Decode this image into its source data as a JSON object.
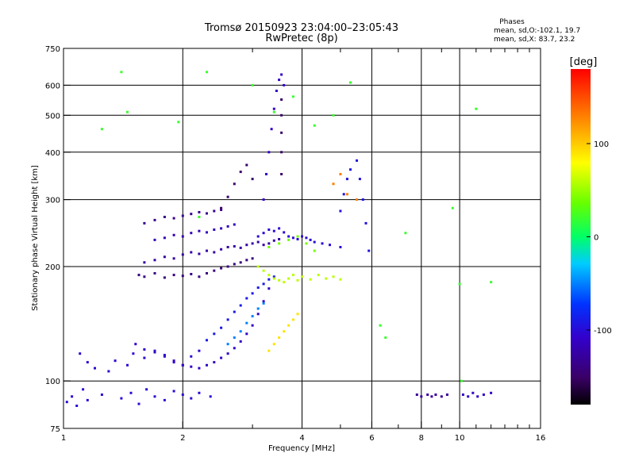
{
  "chart_data": {
    "type": "scatter",
    "title": "Tromsø 20150923 23:04:00–23:05:43",
    "subtitle": "RwPretec (8p)",
    "stats": {
      "heading": "Phases",
      "line_o": "mean, sd,O:-102.1, 19.7",
      "line_x": "mean, sd,X:  83.7, 23.2"
    },
    "xlabel": "Frequency [MHz]",
    "ylabel": "Stationary phase Virtual Height [km]",
    "x_scale": "log",
    "y_scale": "log",
    "xlim": [
      1,
      16
    ],
    "ylim": [
      75,
      750
    ],
    "x_ticks": [
      {
        "value": 1,
        "label": "1"
      },
      {
        "value": 2,
        "label": "2"
      },
      {
        "value": 4,
        "label": "4"
      },
      {
        "value": 6,
        "label": "6"
      },
      {
        "value": 8,
        "label": "8"
      },
      {
        "value": 10,
        "label": "10"
      },
      {
        "value": 16,
        "label": "16"
      }
    ],
    "x_gridlines": [
      2,
      4,
      6,
      8,
      10
    ],
    "x_minor_ticks": [
      3,
      5,
      7,
      9,
      11,
      12,
      13,
      14,
      15
    ],
    "y_ticks": [
      {
        "value": 75,
        "label": "75"
      },
      {
        "value": 100,
        "label": "100"
      },
      {
        "value": 200,
        "label": "200"
      },
      {
        "value": 300,
        "label": "300"
      },
      {
        "value": 400,
        "label": "400"
      },
      {
        "value": 500,
        "label": "500"
      },
      {
        "value": 600,
        "label": "600"
      },
      {
        "value": 750,
        "label": "750"
      }
    ],
    "y_gridlines": [
      100,
      200,
      300,
      400,
      500,
      600
    ],
    "grid": true,
    "colorbar": {
      "title": "[deg]",
      "range": [
        -180,
        180
      ],
      "tick_labels": [
        {
          "value": 100,
          "label": "100"
        },
        {
          "value": 0,
          "label": "0"
        },
        {
          "value": -100,
          "label": "-100"
        }
      ]
    },
    "series": [
      {
        "x": [
          1.02,
          1.05,
          1.08,
          1.12,
          1.15,
          1.25,
          1.4,
          1.48,
          1.55,
          1.62,
          1.7,
          1.8,
          1.9,
          2.0,
          2.1,
          2.2,
          2.35
        ],
        "y": [
          88,
          91,
          86,
          95,
          89,
          92,
          90,
          93,
          87,
          95,
          91,
          89,
          94,
          92,
          90,
          93,
          91
        ],
        "phase": -100
      },
      {
        "x": [
          1.1,
          1.15,
          1.2,
          1.3,
          1.35,
          1.45,
          1.5,
          1.6,
          1.7,
          1.8,
          1.9,
          2.0,
          2.1,
          2.2
        ],
        "y": [
          118,
          112,
          108,
          106,
          113,
          110,
          118,
          115,
          120,
          117,
          112,
          110,
          116,
          120
        ],
        "phase": -105
      },
      {
        "x": [
          1.52,
          1.6,
          1.7,
          1.8,
          1.9,
          2.0,
          2.1,
          2.2,
          2.3,
          2.4,
          2.5,
          2.6,
          2.7,
          2.8,
          2.9,
          3.0,
          3.1,
          3.2,
          3.3
        ],
        "y": [
          125,
          121,
          119,
          116,
          113,
          110,
          109,
          108,
          110,
          112,
          115,
          118,
          122,
          127,
          133,
          140,
          150,
          162,
          175
        ],
        "phase": -110
      },
      {
        "x": [
          2.3,
          2.4,
          2.5,
          2.6,
          2.7,
          2.8,
          2.9,
          3.0,
          3.1,
          3.2,
          3.3,
          3.4
        ],
        "y": [
          128,
          133,
          138,
          145,
          152,
          158,
          165,
          170,
          176,
          180,
          185,
          188
        ],
        "phase": -90
      },
      {
        "x": [
          2.6,
          2.7,
          2.8,
          2.9,
          3.0,
          3.1,
          3.2
        ],
        "y": [
          125,
          130,
          135,
          142,
          148,
          155,
          160
        ],
        "phase": -50
      },
      {
        "x": [
          1.55,
          1.6,
          1.7,
          1.8,
          1.9,
          2.0,
          2.1,
          2.2,
          2.3,
          2.4,
          2.5,
          2.6,
          2.7,
          2.8,
          2.9,
          3.0
        ],
        "y": [
          190,
          188,
          192,
          187,
          190,
          189,
          191,
          188,
          192,
          195,
          198,
          200,
          203,
          205,
          208,
          210
        ],
        "phase": -140
      },
      {
        "x": [
          1.6,
          1.7,
          1.8,
          1.9,
          2.0,
          2.1,
          2.2,
          2.3,
          2.4,
          2.5,
          2.6,
          2.7,
          2.8,
          2.9,
          3.0,
          3.1,
          3.2,
          3.3,
          3.4,
          3.5
        ],
        "y": [
          205,
          208,
          212,
          210,
          215,
          218,
          216,
          220,
          218,
          222,
          225,
          226,
          224,
          228,
          230,
          232,
          228,
          230,
          234,
          236
        ],
        "phase": -125
      },
      {
        "x": [
          1.7,
          1.8,
          1.9,
          2.0,
          2.1,
          2.2,
          2.3,
          2.4,
          2.5,
          2.6,
          2.7
        ],
        "y": [
          235,
          238,
          242,
          240,
          245,
          248,
          246,
          250,
          252,
          255,
          258
        ],
        "phase": -115
      },
      {
        "x": [
          1.6,
          1.7,
          1.8,
          1.9,
          2.0,
          2.1,
          2.2,
          2.3,
          2.4,
          2.5
        ],
        "y": [
          260,
          265,
          270,
          268,
          272,
          275,
          278,
          276,
          280,
          282
        ],
        "phase": -135
      },
      {
        "x": [
          2.5,
          2.6,
          2.7,
          2.8,
          2.9,
          3.0
        ],
        "y": [
          285,
          305,
          330,
          355,
          370,
          340
        ],
        "phase": -150
      },
      {
        "x": [
          3.2,
          3.25,
          3.3,
          3.35,
          3.4,
          3.45,
          3.5,
          3.55,
          3.6
        ],
        "y": [
          300,
          350,
          400,
          460,
          520,
          580,
          620,
          640,
          600
        ],
        "phase": -110
      },
      {
        "x": [
          3.55,
          3.55,
          3.55,
          3.55,
          3.55
        ],
        "y": [
          350,
          400,
          450,
          500,
          550
        ],
        "phase": -150
      },
      {
        "x": [
          3.1,
          3.2,
          3.3,
          3.4,
          3.5,
          3.6,
          3.7,
          3.8,
          3.9,
          4.0,
          4.1,
          4.2,
          4.3,
          4.5,
          4.7,
          5.0
        ],
        "y": [
          240,
          245,
          250,
          248,
          252,
          246,
          240,
          238,
          236,
          240,
          238,
          235,
          232,
          230,
          228,
          225
        ],
        "phase": -100
      },
      {
        "x": [
          3.1,
          3.2,
          3.3,
          3.4,
          3.5,
          3.6,
          3.7,
          3.8,
          3.9,
          4.0,
          4.2,
          4.4,
          4.6,
          4.8,
          5.0
        ],
        "y": [
          200,
          195,
          190,
          186,
          184,
          182,
          186,
          190,
          184,
          188,
          185,
          190,
          186,
          188,
          185
        ],
        "phase": 60
      },
      {
        "x": [
          3.3,
          3.5,
          3.7,
          3.9,
          4.1,
          4.3
        ],
        "y": [
          225,
          230,
          235,
          240,
          230,
          220
        ],
        "phase": 40
      },
      {
        "x": [
          3.3,
          3.4,
          3.5,
          3.6,
          3.7,
          3.8,
          3.9
        ],
        "y": [
          120,
          125,
          130,
          135,
          140,
          145,
          150
        ],
        "phase": 90
      },
      {
        "x": [
          5.0,
          5.1,
          5.2,
          5.3,
          5.5,
          5.6,
          5.7,
          5.8,
          5.9
        ],
        "y": [
          280,
          310,
          340,
          360,
          380,
          340,
          300,
          260,
          220
        ],
        "phase": -95
      },
      {
        "x": [
          4.8,
          5.0,
          5.2,
          5.5
        ],
        "y": [
          330,
          350,
          310,
          300
        ],
        "phase": 130
      },
      {
        "x": [
          7.8,
          8.0,
          8.3,
          8.5,
          8.7,
          9.0,
          9.3
        ],
        "y": [
          92,
          91,
          92,
          91,
          92,
          91,
          92
        ],
        "phase": -130
      },
      {
        "x": [
          10.2,
          10.5,
          10.8,
          11.1,
          11.5,
          12.0
        ],
        "y": [
          92,
          91,
          93,
          91,
          92,
          93
        ],
        "phase": -110
      },
      {
        "x": [
          1.25,
          1.4,
          1.45,
          1.95,
          2.2,
          2.3,
          3.0,
          3.4,
          3.8,
          4.3,
          4.8,
          5.3,
          6.3,
          6.5,
          7.3,
          9.6,
          10.0,
          10.1,
          11.0,
          12.0
        ],
        "y": [
          460,
          650,
          510,
          480,
          270,
          650,
          600,
          510,
          560,
          470,
          500,
          610,
          140,
          130,
          245,
          285,
          180,
          100,
          520,
          182
        ],
        "phase": 20
      }
    ]
  }
}
